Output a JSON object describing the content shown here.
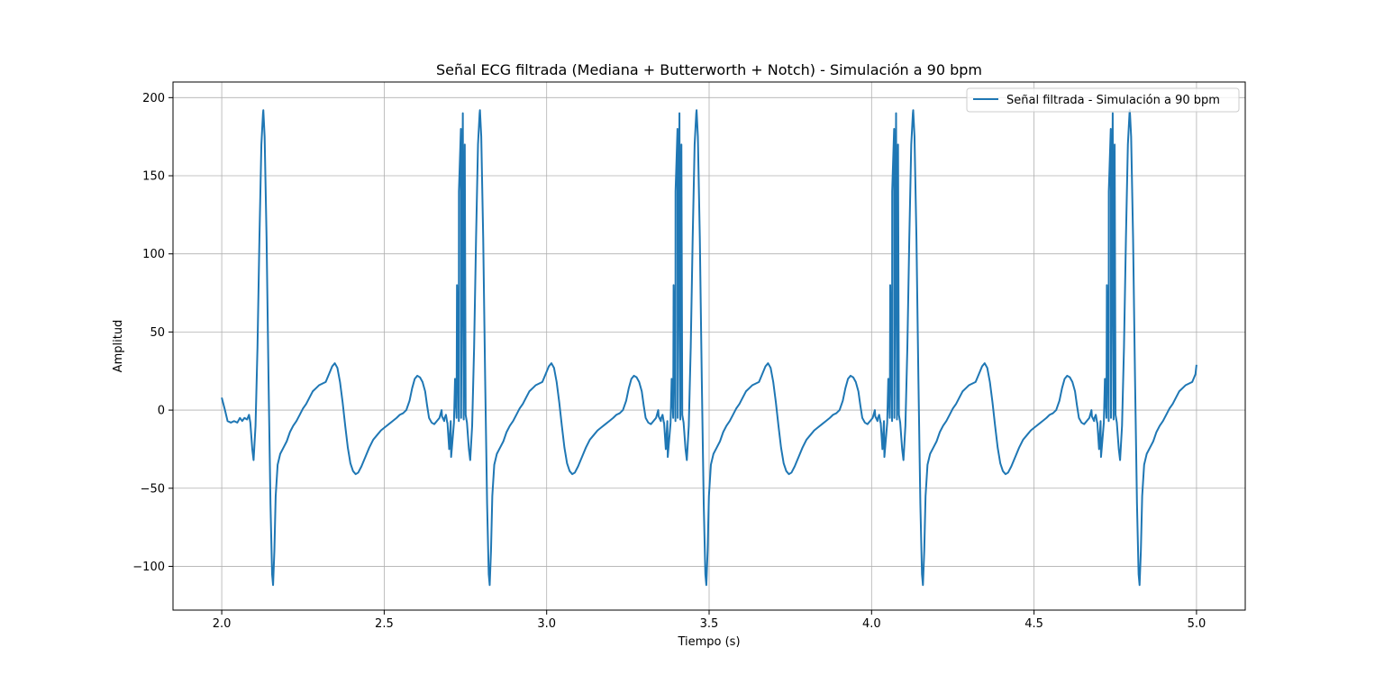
{
  "chart_data": {
    "type": "line",
    "title": "Señal ECG filtrada (Mediana + Butterworth + Notch) - Simulación a 90 bpm",
    "xlabel": "Tiempo (s)",
    "ylabel": "Amplitud",
    "xlim": [
      1.85,
      5.15
    ],
    "ylim": [
      -128,
      210
    ],
    "xticks": [
      2.0,
      2.5,
      3.0,
      3.5,
      4.0,
      4.5,
      5.0
    ],
    "xtick_labels": [
      "2.0",
      "2.5",
      "3.0",
      "3.5",
      "4.0",
      "4.5",
      "5.0"
    ],
    "yticks": [
      -100,
      -50,
      0,
      50,
      100,
      150,
      200
    ],
    "ytick_labels": [
      "−100",
      "−50",
      "0",
      "50",
      "100",
      "150",
      "200"
    ],
    "grid": true,
    "legend_position": "top-right",
    "series": [
      {
        "name": "Señal filtrada - Simulación a 90 bpm",
        "color": "#1f77b4",
        "beat_period_s": 0.6667,
        "first_r_peak_s": 2.128,
        "beat_template": [
          [
            -0.128,
            8
          ],
          [
            -0.118,
            0
          ],
          [
            -0.11,
            -7
          ],
          [
            -0.1,
            -8
          ],
          [
            -0.09,
            -7
          ],
          [
            -0.08,
            -8
          ],
          [
            -0.072,
            -5
          ],
          [
            -0.065,
            -7
          ],
          [
            -0.058,
            -5
          ],
          [
            -0.05,
            -6
          ],
          [
            -0.044,
            -3
          ],
          [
            -0.04,
            -8
          ],
          [
            -0.034,
            -25
          ],
          [
            -0.03,
            -32
          ],
          [
            -0.024,
            -10
          ],
          [
            -0.018,
            40
          ],
          [
            -0.012,
            110
          ],
          [
            -0.006,
            170
          ],
          [
            -0.001,
            190
          ],
          [
            0.0,
            192
          ],
          [
            0.004,
            175
          ],
          [
            0.01,
            110
          ],
          [
            0.016,
            20
          ],
          [
            0.022,
            -60
          ],
          [
            0.027,
            -105
          ],
          [
            0.03,
            -112
          ],
          [
            0.034,
            -90
          ],
          [
            0.038,
            -55
          ],
          [
            0.044,
            -35
          ],
          [
            0.052,
            -28
          ],
          [
            0.062,
            -24
          ],
          [
            0.072,
            -20
          ],
          [
            0.082,
            -14
          ],
          [
            0.092,
            -10
          ],
          [
            0.102,
            -7
          ],
          [
            0.112,
            -3
          ],
          [
            0.122,
            1
          ],
          [
            0.132,
            4
          ],
          [
            0.142,
            8
          ],
          [
            0.152,
            12
          ],
          [
            0.162,
            14
          ],
          [
            0.172,
            16
          ],
          [
            0.182,
            17
          ],
          [
            0.192,
            18
          ],
          [
            0.202,
            23
          ],
          [
            0.212,
            28
          ],
          [
            0.22,
            30
          ],
          [
            0.228,
            27
          ],
          [
            0.236,
            18
          ],
          [
            0.244,
            5
          ],
          [
            0.252,
            -10
          ],
          [
            0.26,
            -24
          ],
          [
            0.268,
            -34
          ],
          [
            0.276,
            -39
          ],
          [
            0.284,
            -41
          ],
          [
            0.292,
            -40
          ],
          [
            0.302,
            -36
          ],
          [
            0.314,
            -30
          ],
          [
            0.326,
            -24
          ],
          [
            0.338,
            -19
          ],
          [
            0.35,
            -16
          ],
          [
            0.362,
            -13
          ],
          [
            0.374,
            -11
          ],
          [
            0.386,
            -9
          ],
          [
            0.398,
            -7
          ],
          [
            0.41,
            -5
          ],
          [
            0.42,
            -3
          ],
          [
            0.43,
            -2
          ],
          [
            0.44,
            0
          ],
          [
            0.45,
            6
          ],
          [
            0.458,
            14
          ],
          [
            0.466,
            20
          ],
          [
            0.474,
            22
          ],
          [
            0.482,
            21
          ],
          [
            0.49,
            18
          ],
          [
            0.498,
            12
          ],
          [
            0.504,
            3
          ],
          [
            0.51,
            -5
          ],
          [
            0.518,
            -8
          ],
          [
            0.526,
            -9
          ],
          [
            0.534,
            -7
          ],
          [
            0.542,
            -5
          ],
          [
            0.55,
            -4
          ],
          [
            0.558,
            -5
          ],
          [
            0.562,
            -3
          ],
          [
            0.566,
            -8
          ],
          [
            0.572,
            -25
          ],
          [
            0.578,
            -30
          ],
          [
            0.584,
            -15
          ],
          [
            0.59,
            20
          ],
          [
            0.596,
            80
          ],
          [
            0.602,
            140
          ],
          [
            0.608,
            180
          ],
          [
            0.614,
            190
          ],
          [
            0.62,
            170
          ]
        ],
        "last_point": [
          5.0,
          29
        ]
      }
    ]
  }
}
